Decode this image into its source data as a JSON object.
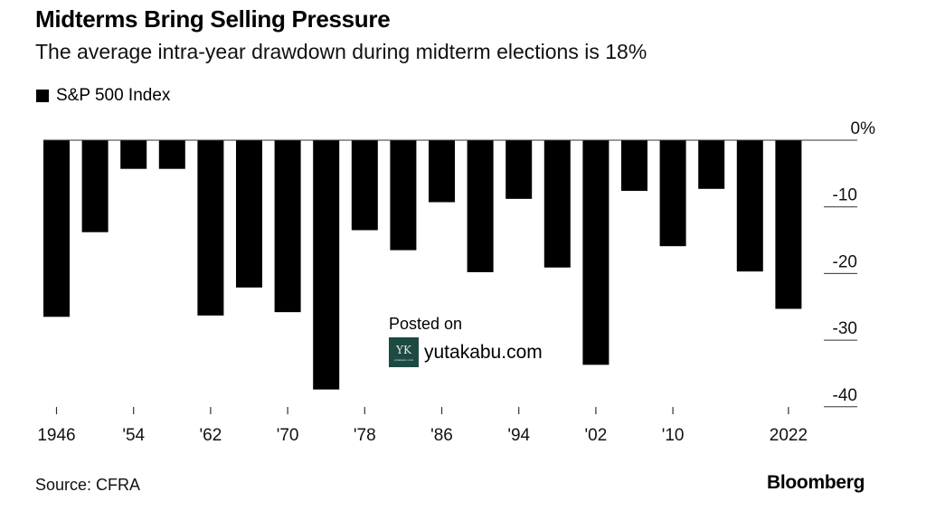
{
  "chart_data": {
    "type": "bar",
    "title": "Midterms Bring Selling Pressure",
    "subtitle": "The average intra-year drawdown during midterm elections is 18%",
    "legend": [
      {
        "name": "S&P 500 Index",
        "color": "#000000"
      }
    ],
    "legend_position": "top-left",
    "categories": [
      "1946",
      "1950",
      "1954",
      "1958",
      "1962",
      "1966",
      "1970",
      "1974",
      "1978",
      "1982",
      "1986",
      "1990",
      "1994",
      "1998",
      "2002",
      "2006",
      "2010",
      "2014",
      "2018",
      "2022"
    ],
    "series": [
      {
        "name": "S&P 500 Index",
        "values": [
          -26.5,
          -13.8,
          -4.3,
          -4.3,
          -26.3,
          -22.1,
          -25.8,
          -37.4,
          -13.5,
          -16.5,
          -9.3,
          -19.8,
          -8.8,
          -19.1,
          -33.7,
          -7.6,
          -15.9,
          -7.3,
          -19.7,
          -25.3
        ]
      }
    ],
    "x_tick_labels": [
      {
        "category": "1946",
        "label": "1946"
      },
      {
        "category": "1954",
        "label": "'54"
      },
      {
        "category": "1962",
        "label": "'62"
      },
      {
        "category": "1970",
        "label": "'70"
      },
      {
        "category": "1978",
        "label": "'78"
      },
      {
        "category": "1986",
        "label": "'86"
      },
      {
        "category": "1994",
        "label": "'94"
      },
      {
        "category": "2002",
        "label": "'02"
      },
      {
        "category": "2010",
        "label": "'10"
      },
      {
        "category": "2022",
        "label": "2022"
      }
    ],
    "y_ticks": [
      {
        "value": 0,
        "label": "0%"
      },
      {
        "value": -10,
        "label": "-10"
      },
      {
        "value": -20,
        "label": "-20"
      },
      {
        "value": -30,
        "label": "-30"
      },
      {
        "value": -40,
        "label": "-40"
      }
    ],
    "ylim": [
      -42,
      0
    ],
    "xlabel": "",
    "ylabel": "",
    "y_axis_side": "right",
    "grid": false
  },
  "footer": {
    "source": "Source: CFRA",
    "brand": "Bloomberg"
  },
  "watermark": {
    "posted_on": "Posted on",
    "logo_text": "YK",
    "logo_small": "yutakabu.com",
    "site": "yutakabu.com",
    "logo_color": "#1d4a42"
  }
}
